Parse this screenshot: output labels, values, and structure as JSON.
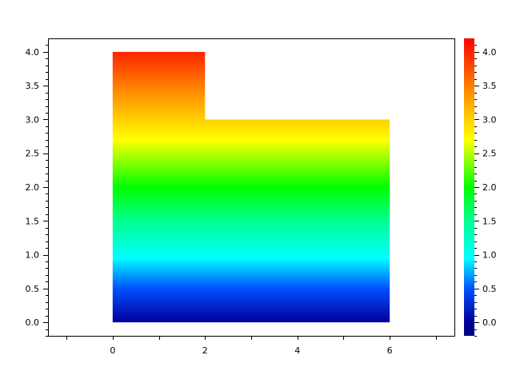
{
  "chart_data": {
    "type": "area",
    "title": "",
    "xlabel": "",
    "ylabel": "",
    "xlim": [
      -1.4,
      7.4
    ],
    "ylim": [
      -0.2,
      4.2
    ],
    "grid": false,
    "x_ticks": [
      "0",
      "2",
      "4",
      "6"
    ],
    "x_tick_values": [
      0,
      2,
      4,
      6
    ],
    "y_ticks": [
      "0.0",
      "0.5",
      "1.0",
      "1.5",
      "2.0",
      "2.5",
      "3.0",
      "3.5",
      "4.0"
    ],
    "y_tick_values": [
      0,
      0.5,
      1,
      1.5,
      2,
      2.5,
      3,
      3.5,
      4
    ],
    "polygon": [
      [
        0,
        0
      ],
      [
        0,
        4
      ],
      [
        2,
        4
      ],
      [
        2,
        3
      ],
      [
        6,
        3
      ],
      [
        6,
        0
      ]
    ],
    "fill_by": "y",
    "colorbar": {
      "range": [
        -0.2,
        4.2
      ],
      "ticks": [
        "0.0",
        "0.5",
        "1.0",
        "1.5",
        "2.0",
        "2.5",
        "3.0",
        "3.5",
        "4.0"
      ],
      "tick_values": [
        0,
        0.5,
        1,
        1.5,
        2,
        2.5,
        3,
        3.5,
        4
      ],
      "colormap": [
        {
          "value": -0.2,
          "color": "#000080"
        },
        {
          "value": 0.0,
          "color": "#00009a"
        },
        {
          "value": 0.5,
          "color": "#0050ff"
        },
        {
          "value": 0.95,
          "color": "#00ffff"
        },
        {
          "value": 1.5,
          "color": "#00ff90"
        },
        {
          "value": 2.0,
          "color": "#00ff00"
        },
        {
          "value": 2.7,
          "color": "#ffff00"
        },
        {
          "value": 3.3,
          "color": "#ffa000"
        },
        {
          "value": 4.2,
          "color": "#ff0000"
        }
      ]
    }
  }
}
